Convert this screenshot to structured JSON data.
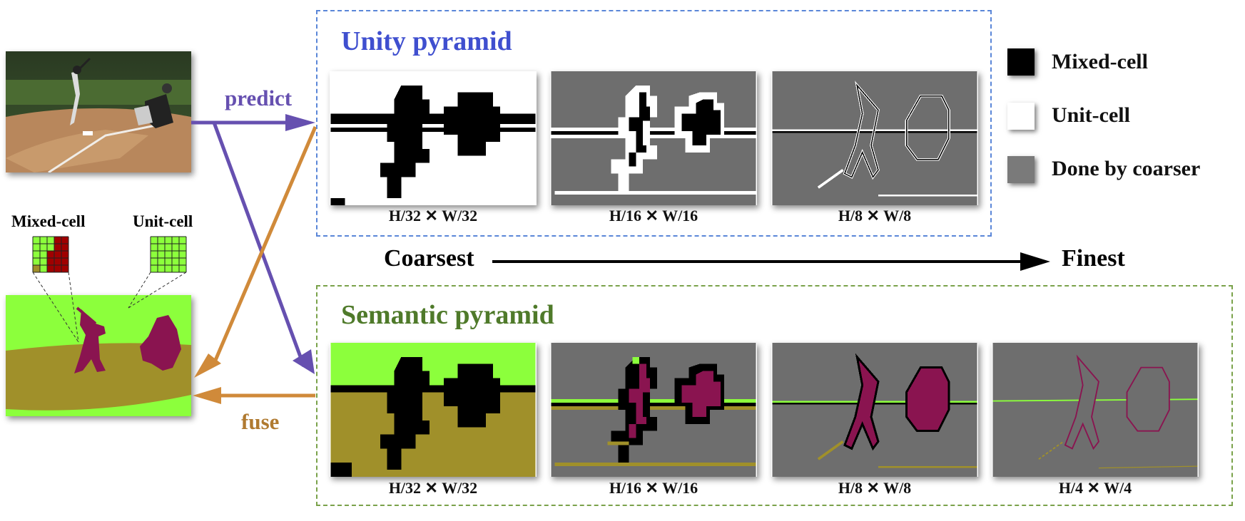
{
  "unity": {
    "title": "Unity pyramid",
    "color": "#3f4fcf",
    "captions": [
      "H/32 ✕ W/32",
      "H/16 ✕ W/16",
      "H/8 ✕ W/8"
    ]
  },
  "semantic": {
    "title": "Semantic pyramid",
    "color": "#4f7a2a",
    "captions": [
      "H/32 ✕ W/32",
      "H/16 ✕ W/16",
      "H/8 ✕ W/8",
      "H/4 ✕ W/4"
    ]
  },
  "arrows": {
    "predict": "predict",
    "fuse": "fuse",
    "predict_color": "#6650b0",
    "fuse_color": "#d08a3a"
  },
  "scale": {
    "coarsest": "Coarsest",
    "finest": "Finest"
  },
  "legend": {
    "mixed": "Mixed-cell",
    "unit": "Unit-cell",
    "done": "Done by coarser"
  },
  "cells": {
    "mixed": "Mixed-cell",
    "unit": "Unit-cell"
  },
  "colors": {
    "person": "#8a1450",
    "ground": "#a0902a",
    "sky": "#8cff3c",
    "gray": "#6e6e6e"
  }
}
